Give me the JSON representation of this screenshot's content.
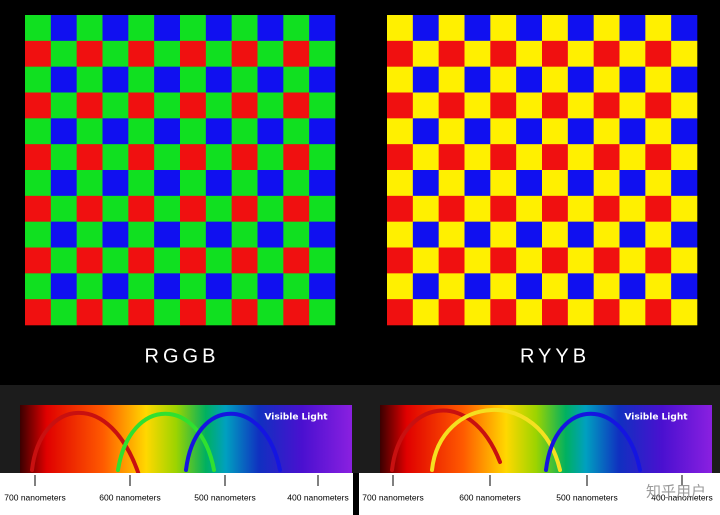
{
  "panels": [
    {
      "label": "RGGB",
      "tile_colors": [
        [
          "#10e020",
          "#1010f0"
        ],
        [
          "#f01010",
          "#10e020"
        ]
      ],
      "spectrum": {
        "title": "Visible Light",
        "scale": [
          "700 nanometers",
          "600 nanometers",
          "500 nanometers",
          "400 nanometers"
        ]
      }
    },
    {
      "label": "RYYB",
      "tile_colors": [
        [
          "#fff000",
          "#1010f0"
        ],
        [
          "#f01010",
          "#fff000"
        ]
      ],
      "spectrum": {
        "title": "Visible Light",
        "scale": [
          "700 nanometers",
          "600 nanometers",
          "500 nanometers",
          "400 nanometers"
        ]
      }
    }
  ],
  "watermark": "知乎用户"
}
